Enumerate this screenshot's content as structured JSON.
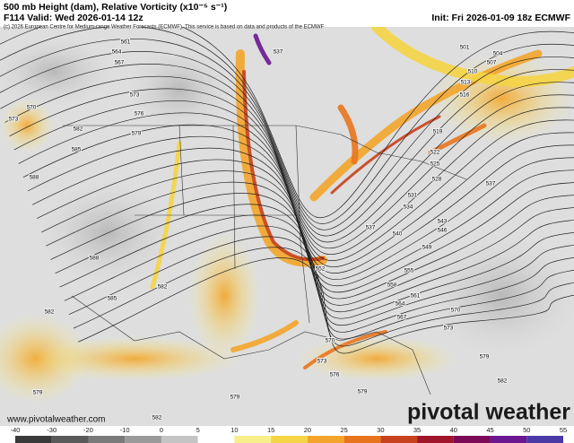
{
  "header": {
    "title": "500 mb Height (dam), Relative Vorticity (x10⁻⁵ s⁻¹)",
    "valid": "F114 Valid: Wed 2026-01-14 12z",
    "init": "Init: Fri 2026-01-09 18z ECMWF",
    "copyright": "(c) 2026 European Centre for Medium-range Weather Forecasts (ECMWF). This service is based on data and products of the ECMWF"
  },
  "map": {
    "contour_labels": [
      561,
      564,
      567,
      570,
      573,
      573,
      576,
      579,
      582,
      585,
      588,
      588,
      585,
      582,
      582,
      579,
      579,
      582,
      537,
      501,
      504,
      507,
      510,
      513,
      516,
      519,
      522,
      525,
      528,
      531,
      534,
      537,
      540,
      543,
      546,
      549,
      552,
      555,
      558,
      561,
      564,
      567,
      570,
      570,
      573,
      573,
      576,
      579,
      579,
      582,
      537
    ],
    "website": "www.pivotalweather.com",
    "logo": "pivotal weather"
  },
  "colorbar": {
    "ticks": [
      -40,
      -30,
      -20,
      -10,
      0,
      5,
      10,
      15,
      20,
      25,
      30,
      35,
      40,
      45,
      50,
      55
    ],
    "colors": [
      "#3a3a3a",
      "#5a5a5a",
      "#7a7a7a",
      "#9a9a9a",
      "#c4c4c4",
      "#ffffff",
      "#f7f08a",
      "#f5d445",
      "#f3a52b",
      "#e8751e",
      "#c8421d",
      "#a0162a",
      "#7c0a56",
      "#6a1790",
      "#4a3aa6",
      "#c8b8e8"
    ]
  }
}
